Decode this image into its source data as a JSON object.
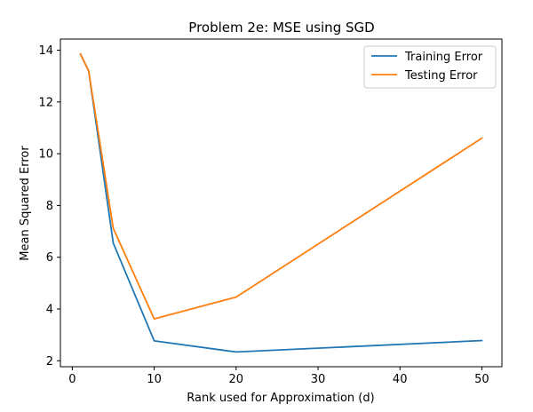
{
  "chart_data": {
    "type": "line",
    "title": "Problem 2e: MSE using SGD",
    "xlabel": "Rank used for Approximation (d)",
    "ylabel": "Mean Squared Error",
    "x": [
      1,
      2,
      5,
      10,
      20,
      50
    ],
    "xlim": [
      -1.45,
      52.45
    ],
    "ylim": [
      1.77,
      14.43
    ],
    "xticks": [
      0,
      10,
      20,
      30,
      40,
      50
    ],
    "yticks": [
      2,
      4,
      6,
      8,
      10,
      12,
      14
    ],
    "grid": false,
    "legend_position": "top-right",
    "series": [
      {
        "name": "Training Error",
        "color": "#1f77b4",
        "values": [
          13.85,
          13.2,
          6.55,
          2.77,
          2.34,
          2.78
        ]
      },
      {
        "name": "Testing Error",
        "color": "#ff7f0e",
        "values": [
          13.85,
          13.2,
          7.12,
          3.62,
          4.46,
          10.6
        ]
      }
    ]
  }
}
